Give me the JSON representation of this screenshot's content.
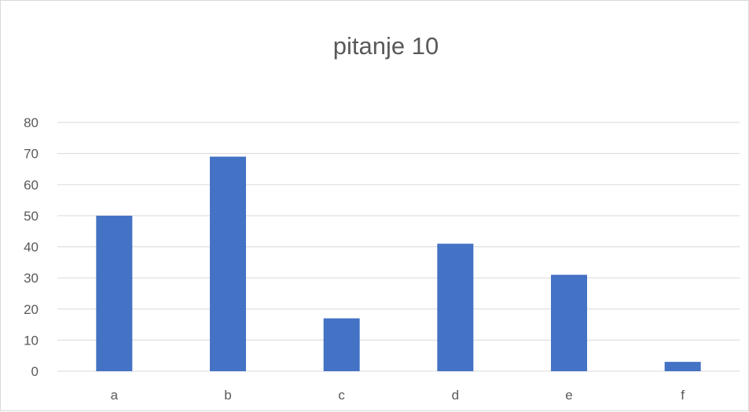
{
  "chart_data": {
    "type": "bar",
    "title": "pitanje 10",
    "xlabel": "",
    "ylabel": "",
    "categories": [
      "a",
      "b",
      "c",
      "d",
      "e",
      "f"
    ],
    "series": [
      {
        "values": [
          50,
          69,
          17,
          41,
          31,
          3
        ],
        "color": "#4472c4"
      }
    ],
    "ylim": [
      0,
      80
    ],
    "yticks": [
      0,
      10,
      20,
      30,
      40,
      50,
      60,
      70,
      80
    ],
    "grid": true,
    "legend": "none"
  },
  "colors": {
    "bar": "#4472c4",
    "grid": "#d9d9d9",
    "text": "#595959"
  }
}
